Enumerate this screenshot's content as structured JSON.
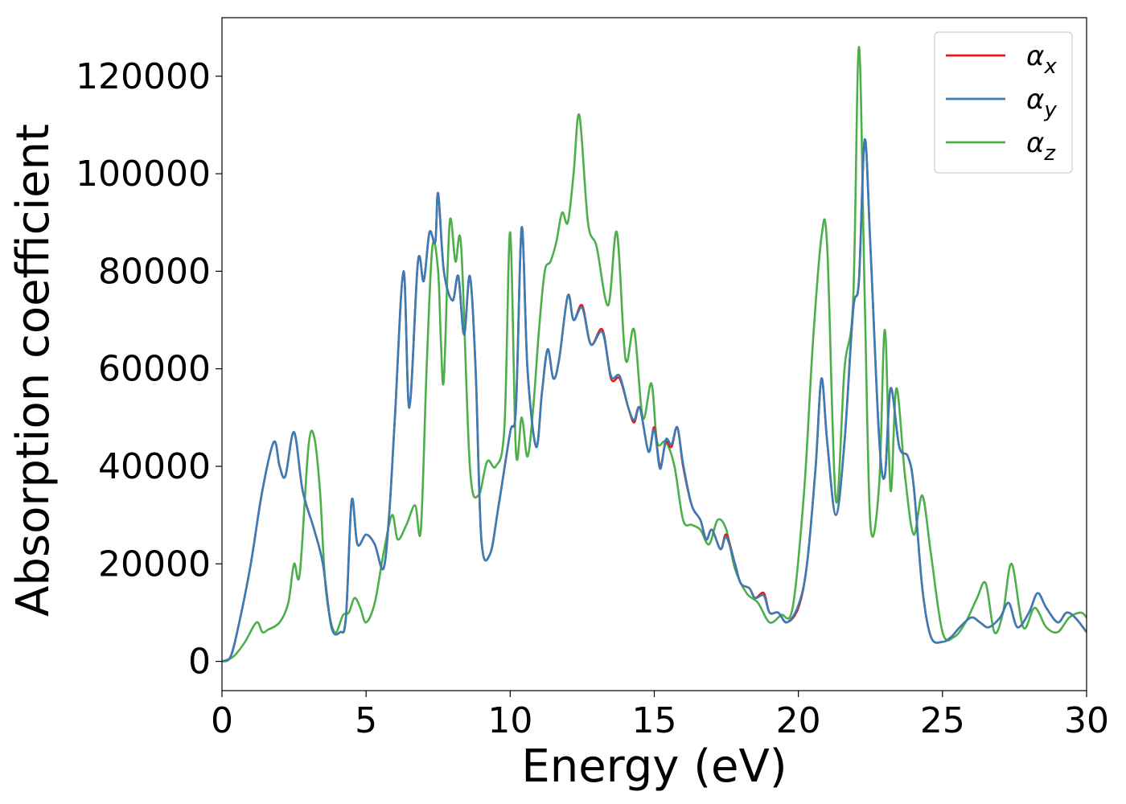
{
  "chart_data": {
    "type": "line",
    "xlabel": "Energy (eV)",
    "ylabel": "Absorption coefficient",
    "xlim": [
      0,
      30
    ],
    "ylim": [
      -6000,
      132000
    ],
    "xticks": [
      0,
      5,
      10,
      15,
      20,
      25,
      30
    ],
    "xtick_labels": [
      "0",
      "5",
      "10",
      "15",
      "20",
      "25",
      "30"
    ],
    "yticks": [
      0,
      20000,
      40000,
      60000,
      80000,
      100000,
      120000
    ],
    "ytick_labels": [
      "0",
      "20000",
      "40000",
      "60000",
      "80000",
      "100000",
      "120000"
    ],
    "grid": false,
    "legend_position": "top-right",
    "series": [
      {
        "name": "α_x",
        "legend_base": "α",
        "legend_sub": "x",
        "color": "#e41a1c",
        "x": [
          0,
          0.3,
          0.6,
          1.0,
          1.4,
          1.8,
          2.0,
          2.2,
          2.5,
          2.8,
          3.2,
          3.5,
          3.8,
          4.1,
          4.3,
          4.5,
          4.7,
          5.0,
          5.3,
          5.6,
          5.8,
          6.0,
          6.3,
          6.5,
          6.8,
          7.0,
          7.2,
          7.4,
          7.5,
          7.7,
          8.0,
          8.2,
          8.4,
          8.6,
          8.8,
          9.0,
          9.3,
          9.6,
          10.0,
          10.2,
          10.4,
          10.6,
          10.9,
          11.1,
          11.3,
          11.5,
          11.7,
          12.0,
          12.2,
          12.5,
          12.8,
          13.2,
          13.5,
          13.8,
          14.1,
          14.3,
          14.5,
          14.8,
          15.0,
          15.2,
          15.4,
          15.6,
          15.8,
          16.0,
          16.3,
          16.6,
          16.8,
          17.0,
          17.3,
          17.5,
          17.8,
          18.0,
          18.3,
          18.5,
          18.8,
          19.0,
          19.3,
          19.6,
          20.0,
          20.3,
          20.6,
          20.8,
          21.0,
          21.3,
          21.6,
          21.9,
          22.1,
          22.3,
          22.5,
          22.8,
          23.0,
          23.2,
          23.5,
          23.8,
          24.0,
          24.3,
          24.6,
          25.0,
          25.3,
          25.6,
          26.0,
          26.3,
          26.6,
          27.0,
          27.3,
          27.6,
          28.0,
          28.3,
          28.6,
          29.0,
          29.3,
          29.6,
          30.0
        ],
        "y": [
          0,
          1000,
          8000,
          20000,
          35000,
          45000,
          40000,
          38000,
          47000,
          35000,
          27000,
          20000,
          7000,
          6000,
          9000,
          33000,
          24000,
          26000,
          24000,
          19000,
          30000,
          50000,
          80000,
          52000,
          82000,
          78000,
          88000,
          86000,
          96000,
          80000,
          74000,
          79000,
          67000,
          79000,
          60000,
          25000,
          22000,
          32000,
          47000,
          52000,
          89000,
          60000,
          44000,
          55000,
          64000,
          58000,
          62000,
          75000,
          70000,
          73000,
          65000,
          68000,
          58000,
          58000,
          52000,
          49000,
          52000,
          43000,
          48000,
          40000,
          45000,
          44000,
          48000,
          40000,
          32000,
          29000,
          25000,
          27000,
          23000,
          26000,
          20000,
          16000,
          15000,
          13000,
          14000,
          10000,
          10000,
          8000,
          11000,
          20000,
          40000,
          58000,
          45000,
          30000,
          45000,
          72000,
          78000,
          107000,
          85000,
          46000,
          38000,
          56000,
          44000,
          42000,
          36000,
          15000,
          5000,
          4000,
          5000,
          7000,
          9000,
          8000,
          7000,
          9000,
          12000,
          7000,
          10000,
          14000,
          11000,
          8000,
          10000,
          9000,
          6000
        ]
      },
      {
        "name": "α_y",
        "legend_base": "α",
        "legend_sub": "y",
        "color": "#377eb8",
        "x": [
          0,
          0.3,
          0.6,
          1.0,
          1.4,
          1.8,
          2.0,
          2.2,
          2.5,
          2.8,
          3.2,
          3.5,
          3.8,
          4.1,
          4.3,
          4.5,
          4.7,
          5.0,
          5.3,
          5.6,
          5.8,
          6.0,
          6.3,
          6.5,
          6.8,
          7.0,
          7.2,
          7.4,
          7.5,
          7.7,
          8.0,
          8.2,
          8.4,
          8.6,
          8.8,
          9.0,
          9.3,
          9.6,
          10.0,
          10.2,
          10.4,
          10.6,
          10.9,
          11.1,
          11.3,
          11.5,
          11.7,
          12.0,
          12.2,
          12.5,
          12.8,
          13.2,
          13.5,
          13.8,
          14.1,
          14.3,
          14.5,
          14.8,
          15.0,
          15.2,
          15.4,
          15.6,
          15.8,
          16.0,
          16.3,
          16.6,
          16.8,
          17.0,
          17.3,
          17.5,
          17.8,
          18.0,
          18.3,
          18.5,
          18.8,
          19.0,
          19.3,
          19.6,
          20.0,
          20.3,
          20.6,
          20.8,
          21.0,
          21.3,
          21.6,
          21.9,
          22.1,
          22.3,
          22.5,
          22.8,
          23.0,
          23.2,
          23.5,
          23.8,
          24.0,
          24.3,
          24.6,
          25.0,
          25.3,
          25.6,
          26.0,
          26.3,
          26.6,
          27.0,
          27.3,
          27.6,
          28.0,
          28.3,
          28.6,
          29.0,
          29.3,
          29.6,
          30.0
        ],
        "y": [
          0,
          1000,
          8000,
          20000,
          35000,
          45000,
          40000,
          38000,
          47000,
          35000,
          27000,
          20000,
          7000,
          6000,
          9000,
          33000,
          24000,
          26000,
          24000,
          19000,
          30000,
          50000,
          80000,
          52000,
          82000,
          78000,
          88000,
          86000,
          96000,
          80000,
          74000,
          79000,
          67000,
          79000,
          60000,
          25000,
          22000,
          32000,
          47000,
          52000,
          89000,
          60000,
          44000,
          55000,
          64000,
          58000,
          62000,
          75000,
          70000,
          72500,
          65000,
          67500,
          58500,
          58500,
          52000,
          49500,
          52000,
          43000,
          47500,
          39500,
          45500,
          44500,
          48000,
          40500,
          32000,
          29000,
          25000,
          27000,
          23000,
          25500,
          20000,
          16000,
          15000,
          13000,
          13500,
          10000,
          10000,
          8000,
          11500,
          20000,
          40000,
          58000,
          45000,
          30000,
          45000,
          72000,
          78000,
          107000,
          85000,
          46000,
          38000,
          56000,
          44000,
          42000,
          36000,
          15000,
          5000,
          4000,
          5000,
          7000,
          9000,
          8000,
          7000,
          9000,
          12000,
          7000,
          10000,
          14000,
          11000,
          8000,
          10000,
          9000,
          6000
        ]
      },
      {
        "name": "α_z",
        "legend_base": "α",
        "legend_sub": "z",
        "color": "#4daf4a",
        "x": [
          0,
          0.4,
          0.8,
          1.2,
          1.4,
          1.6,
          2.0,
          2.3,
          2.5,
          2.7,
          3.0,
          3.2,
          3.4,
          3.6,
          3.9,
          4.2,
          4.4,
          4.6,
          4.8,
          5.0,
          5.3,
          5.6,
          5.9,
          6.1,
          6.4,
          6.7,
          6.9,
          7.1,
          7.3,
          7.5,
          7.6,
          7.7,
          7.9,
          8.1,
          8.3,
          8.6,
          8.9,
          9.2,
          9.5,
          9.8,
          10.0,
          10.2,
          10.4,
          10.6,
          10.8,
          11.0,
          11.2,
          11.4,
          11.6,
          11.8,
          12.0,
          12.2,
          12.4,
          12.7,
          13.0,
          13.4,
          13.7,
          14.0,
          14.3,
          14.6,
          14.9,
          15.1,
          15.4,
          15.7,
          16.0,
          16.3,
          16.6,
          16.9,
          17.2,
          17.5,
          17.8,
          18.2,
          18.6,
          19.0,
          19.4,
          19.8,
          20.2,
          20.5,
          20.8,
          21.0,
          21.3,
          21.6,
          21.9,
          22.1,
          22.3,
          22.5,
          22.8,
          23.0,
          23.2,
          23.4,
          23.7,
          24.0,
          24.3,
          24.6,
          25.0,
          25.4,
          25.8,
          26.2,
          26.5,
          26.8,
          27.1,
          27.4,
          27.8,
          28.2,
          28.6,
          29.0,
          29.4,
          29.8,
          30.0
        ],
        "y": [
          0,
          1000,
          4000,
          8000,
          6000,
          6500,
          8000,
          12000,
          20000,
          18000,
          44000,
          46000,
          35000,
          15000,
          6000,
          9500,
          10000,
          13000,
          11000,
          8000,
          12000,
          22000,
          30000,
          25000,
          28000,
          32000,
          27000,
          60000,
          85000,
          80000,
          65000,
          58000,
          90000,
          82000,
          85000,
          40000,
          34000,
          41000,
          40000,
          48000,
          88000,
          43000,
          50000,
          42000,
          52000,
          68000,
          80000,
          82000,
          86000,
          92000,
          90000,
          100000,
          112000,
          90000,
          85000,
          73000,
          88000,
          62000,
          68000,
          50000,
          57000,
          45000,
          45000,
          40000,
          29000,
          28000,
          27000,
          24000,
          29000,
          27000,
          19000,
          14000,
          12000,
          8000,
          9500,
          11000,
          35000,
          65000,
          87000,
          85000,
          33000,
          60000,
          74000,
          126000,
          75000,
          28000,
          36000,
          68000,
          35000,
          56000,
          38000,
          26000,
          34000,
          22000,
          6000,
          5000,
          8000,
          13000,
          16000,
          6000,
          10000,
          20000,
          7000,
          11000,
          7000,
          6000,
          9000,
          10000,
          9000
        ]
      }
    ]
  }
}
